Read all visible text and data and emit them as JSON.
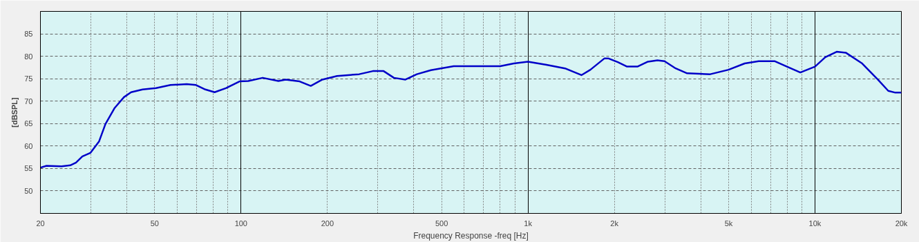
{
  "chart_data": {
    "type": "line",
    "xlabel": "Frequency Response -freq [Hz]",
    "ylabel": "[dBSPL]",
    "log": "x",
    "grid": true,
    "marker": "none",
    "line_style": "solid",
    "xlim": [
      20,
      20000
    ],
    "ylim": [
      45,
      90
    ],
    "xticks": [
      20,
      {
        "value": 30,
        "label": null
      },
      {
        "value": 40,
        "label": null
      },
      50,
      {
        "value": 60,
        "label": null
      },
      {
        "value": 70,
        "label": null
      },
      {
        "value": 80,
        "label": null
      },
      {
        "value": 90,
        "label": null
      },
      100,
      200,
      {
        "value": 300,
        "label": null
      },
      {
        "value": 400,
        "label": null
      },
      500,
      {
        "value": 600,
        "label": null
      },
      {
        "value": 700,
        "label": null
      },
      {
        "value": 800,
        "label": null
      },
      {
        "value": 900,
        "label": null
      },
      {
        "value": 1000,
        "label": "1k"
      },
      {
        "value": 2000,
        "label": "2k"
      },
      {
        "value": 3000,
        "label": null
      },
      {
        "value": 4000,
        "label": null
      },
      {
        "value": 5000,
        "label": "5k"
      },
      {
        "value": 6000,
        "label": null
      },
      {
        "value": 7000,
        "label": null
      },
      {
        "value": 8000,
        "label": null
      },
      {
        "value": 9000,
        "label": null
      },
      {
        "value": 10000,
        "label": "10k"
      },
      {
        "value": 20000,
        "label": "20k"
      }
    ],
    "yticks": [
      50,
      55,
      60,
      65,
      70,
      75,
      80,
      85
    ],
    "series": [
      {
        "color": "#0000c8",
        "x": [
          20,
          21,
          23.7,
          25.4,
          26.6,
          28,
          29.9,
          32,
          33.7,
          36.3,
          39.1,
          41.4,
          45.4,
          50.6,
          56.8,
          64.7,
          69.7,
          75.1,
          80.9,
          88.6,
          98.8,
          106,
          119,
          135,
          143,
          160,
          175,
          192,
          216,
          258,
          288,
          314,
          341,
          374,
          410,
          459,
          551,
          678,
          800,
          893,
          1000,
          1160,
          1346,
          1535,
          1650,
          1844,
          1910,
          2056,
          2214,
          2406,
          2617,
          2825,
          2990,
          3270,
          3585,
          4315,
          5000,
          5690,
          6365,
          7250,
          7910,
          8890,
          10000,
          10870,
          11900,
          12800,
          14600,
          16400,
          18000,
          19050,
          20000
        ],
        "values": [
          55.2,
          55.6,
          55.5,
          55.7,
          56.3,
          57.7,
          58.5,
          61.0,
          64.9,
          68.5,
          70.9,
          72.0,
          72.6,
          72.9,
          73.6,
          73.8,
          73.6,
          72.6,
          72.0,
          72.9,
          74.4,
          74.5,
          75.2,
          74.5,
          74.8,
          74.4,
          73.4,
          74.8,
          75.6,
          76.0,
          76.7,
          76.7,
          75.2,
          74.8,
          76.0,
          76.9,
          77.8,
          77.8,
          77.8,
          78.4,
          78.8,
          78.1,
          77.3,
          75.8,
          77.0,
          79.5,
          79.5,
          78.7,
          77.7,
          77.7,
          78.8,
          79.1,
          78.9,
          77.3,
          76.2,
          76.0,
          77.0,
          78.4,
          78.9,
          78.9,
          77.8,
          76.4,
          77.7,
          79.8,
          81.0,
          80.8,
          78.4,
          75.1,
          72.3,
          71.9,
          71.9
        ]
      }
    ]
  }
}
